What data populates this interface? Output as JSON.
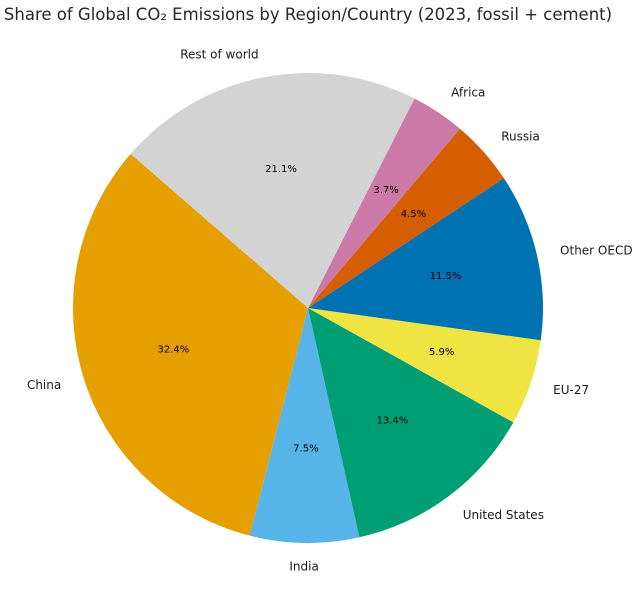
{
  "chart_data": {
    "type": "pie",
    "title": "Share of Global CO₂ Emissions by Region/Country (2023, fossil + cement)",
    "categories": [
      "China",
      "India",
      "United States",
      "EU-27",
      "Other OECD",
      "Russia",
      "Africa",
      "Rest of world"
    ],
    "values": [
      32.4,
      7.5,
      13.4,
      5.9,
      11.5,
      4.5,
      3.7,
      21.1
    ],
    "value_labels": [
      "32.4%",
      "7.5%",
      "13.4%",
      "5.9%",
      "11.5%",
      "4.5%",
      "3.7%",
      "21.1%"
    ],
    "colors": [
      "#e69f00",
      "#56b4e9",
      "#009e73",
      "#f0e442",
      "#0072b2",
      "#d55e00",
      "#cc79a7",
      "#d3d3d3"
    ],
    "start_angle_deg": 139,
    "direction": "counterclockwise",
    "legend": "none"
  }
}
